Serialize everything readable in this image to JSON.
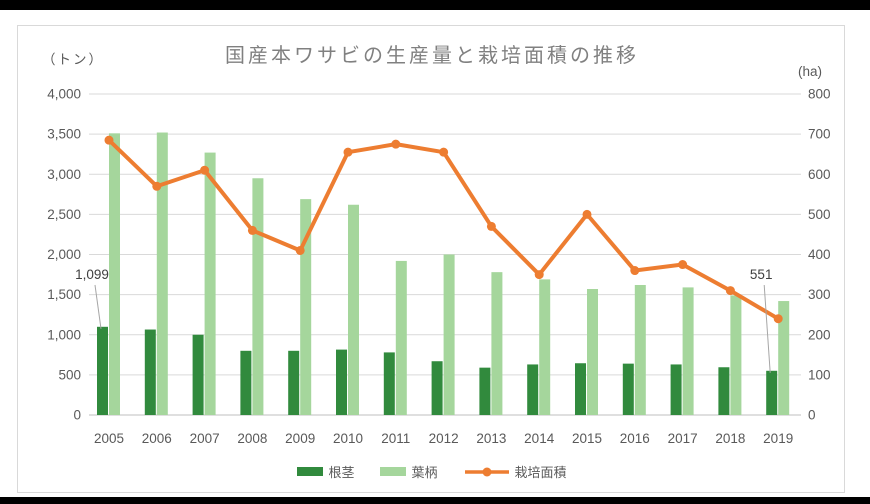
{
  "page": {
    "title": "国産本ワサビの生産量と栽培面積の推移",
    "unit_left": "（トン）",
    "unit_right": "(ha)"
  },
  "legend": {
    "rhizome": "根茎",
    "petiole": "葉柄",
    "area": "栽培面積"
  },
  "colors": {
    "rhizome": "#318a3d",
    "petiole": "#a5d69c",
    "area": "#ed7d31",
    "grid": "#d9d9d9",
    "zero_line": "#bfbfbf",
    "tick": "#595959",
    "title": "#808080",
    "annotation": "#404040",
    "leader": "#a6a6a6"
  },
  "chart_data": {
    "type": "combo-bar-line",
    "title": "国産本ワサビの生産量と栽培面積の推移",
    "categories": [
      "2005",
      "2006",
      "2007",
      "2008",
      "2009",
      "2010",
      "2011",
      "2012",
      "2013",
      "2014",
      "2015",
      "2016",
      "2017",
      "2018",
      "2019"
    ],
    "series": [
      {
        "name": "根茎",
        "type": "bar",
        "axis": "left",
        "color_key": "rhizome",
        "values": [
          1099,
          1065,
          1000,
          800,
          800,
          815,
          780,
          670,
          590,
          630,
          645,
          640,
          630,
          595,
          551
        ]
      },
      {
        "name": "葉柄",
        "type": "bar",
        "axis": "left",
        "color_key": "petiole",
        "values": [
          3510,
          3520,
          3270,
          2950,
          2690,
          2620,
          1920,
          2000,
          1780,
          1690,
          1570,
          1620,
          1590,
          1490,
          1420
        ]
      },
      {
        "name": "栽培面積",
        "type": "line",
        "axis": "right",
        "color_key": "area",
        "values": [
          685,
          570,
          610,
          460,
          410,
          655,
          675,
          655,
          470,
          350,
          500,
          360,
          375,
          310,
          240
        ]
      }
    ],
    "left_axis": {
      "title": "（トン）",
      "min": 0,
      "max": 4000,
      "step": 500,
      "tick_labels": [
        "4,000",
        "3,500",
        "3,000",
        "2,500",
        "2,000",
        "1,500",
        "1,000",
        "500",
        "0"
      ]
    },
    "right_axis": {
      "title": "(ha)",
      "min": 0,
      "max": 800,
      "step": 100,
      "tick_labels": [
        "800",
        "700",
        "600",
        "500",
        "400",
        "300",
        "200",
        "100",
        "0"
      ]
    },
    "annotations": [
      {
        "series": "根茎",
        "category": "2005",
        "label": "1,099"
      },
      {
        "series": "根茎",
        "category": "2019",
        "label": "551"
      }
    ],
    "grid": true,
    "legend_position": "bottom"
  }
}
